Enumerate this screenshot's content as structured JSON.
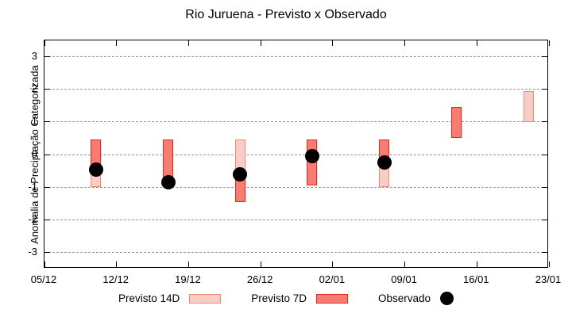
{
  "title": "Rio Juruena - Previsto x Observado",
  "chart_data": {
    "type": "bar",
    "subtype": "floating-range-bars-with-scatter",
    "title": "Rio Juruena - Previsto x Observado",
    "xlabel": "",
    "ylabel": "Anomalia de Preciptação Categorizada",
    "ylim": [
      -3.5,
      3.5
    ],
    "yticks": [
      3,
      2,
      1,
      0,
      -1,
      -2,
      -3
    ],
    "grid": "horizontal-dashed",
    "xlim_days": [
      0,
      49
    ],
    "xtick_days": [
      0,
      7,
      14,
      21,
      28,
      35,
      42,
      49
    ],
    "xtick_labels": [
      "05/12",
      "12/12",
      "19/12",
      "26/12",
      "02/01",
      "09/01",
      "16/01",
      "23/01"
    ],
    "legend_position": "bottom-center",
    "colors": {
      "previsto14_fill": "#f8cdc6",
      "previsto14_border": "#ef8b7b",
      "previsto7_fill": "#f87c72",
      "previsto7_border": "#e9251f",
      "observado": "#000000",
      "gridline": "#999999"
    },
    "series": [
      {
        "name": "Previsto 14D",
        "type": "range-bar",
        "fill": "#f8cdc6",
        "border": "#ef8b7b",
        "points": [
          {
            "day": 5,
            "low": -1.0,
            "high": 0.45
          },
          {
            "day": 12,
            "low": -1.0,
            "high": 0.45
          },
          {
            "day": 19,
            "low": -0.6,
            "high": 0.45
          },
          {
            "day": 26,
            "low": -0.95,
            "high": 0.45
          },
          {
            "day": 33,
            "low": -1.0,
            "high": 0.45
          },
          {
            "day": 47,
            "low": 1.0,
            "high": 1.95
          }
        ]
      },
      {
        "name": "Previsto 7D",
        "type": "range-bar",
        "fill": "#f87c72",
        "border": "#e9251f",
        "points": [
          {
            "day": 5,
            "low": -0.6,
            "high": 0.45
          },
          {
            "day": 12,
            "low": -1.0,
            "high": 0.45
          },
          {
            "day": 19,
            "low": -1.45,
            "high": -0.55
          },
          {
            "day": 26,
            "low": -0.95,
            "high": 0.45
          },
          {
            "day": 33,
            "low": -0.35,
            "high": 0.45
          },
          {
            "day": 40,
            "low": 0.5,
            "high": 1.45
          }
        ]
      },
      {
        "name": "Observado",
        "type": "scatter",
        "color": "#000000",
        "points": [
          {
            "day": 5,
            "value": -0.45
          },
          {
            "day": 12,
            "value": -0.85
          },
          {
            "day": 19,
            "value": -0.6
          },
          {
            "day": 26,
            "value": -0.05
          },
          {
            "day": 33,
            "value": -0.25
          }
        ]
      }
    ]
  }
}
